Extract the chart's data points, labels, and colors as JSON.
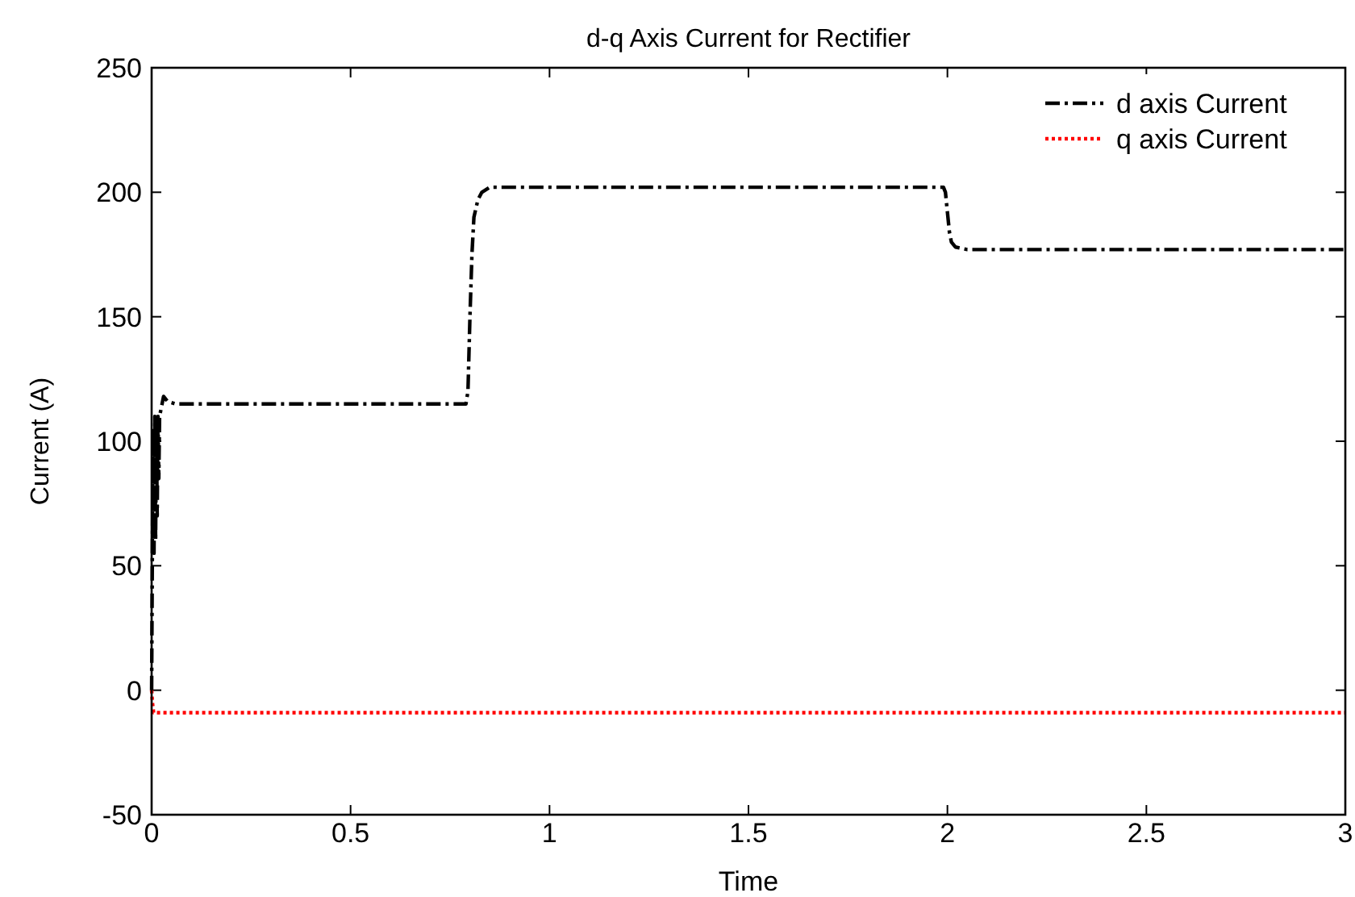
{
  "chart_data": {
    "type": "line",
    "title": "d-q Axis Current for Rectifier",
    "xlabel": "Time",
    "ylabel": "Current (A)",
    "xlim": [
      0,
      3
    ],
    "xticks": [
      0,
      0.5,
      1,
      1.5,
      2,
      2.5,
      3
    ],
    "ylim": [
      -50,
      250
    ],
    "yticks": [
      -50,
      0,
      50,
      100,
      150,
      200,
      250
    ],
    "grid": false,
    "legend": "top right",
    "marker": "none",
    "series": [
      {
        "name": "d axis Current",
        "color": "#000000",
        "line_style": "dashed",
        "x": [
          0,
          0.002,
          0.004,
          0.006,
          0.008,
          0.01,
          0.012,
          0.014,
          0.016,
          0.018,
          0.02,
          0.025,
          0.03,
          0.04,
          0.06,
          0.1,
          0.5,
          0.79,
          0.795,
          0.8,
          0.805,
          0.81,
          0.82,
          0.83,
          0.85,
          0.9,
          1.5,
          1.99,
          1.995,
          2.0,
          2.005,
          2.01,
          2.02,
          2.05,
          2.5,
          3
        ],
        "values": [
          0,
          60,
          105,
          55,
          110,
          60,
          108,
          70,
          110,
          85,
          110,
          114,
          118,
          116,
          115,
          115,
          115,
          115,
          120,
          150,
          175,
          190,
          197,
          200,
          202,
          202,
          202,
          202,
          200,
          192,
          184,
          180,
          178,
          177,
          177,
          177
        ]
      },
      {
        "name": "q axis Current",
        "color": "#ff0000",
        "line_style": "dotted",
        "x": [
          0,
          0.002,
          0.005,
          0.01,
          0.5,
          1,
          1.5,
          2,
          2.5,
          3
        ],
        "values": [
          0,
          -5,
          -9,
          -9,
          -9,
          -9,
          -9,
          -9,
          -9,
          -9
        ]
      }
    ]
  }
}
